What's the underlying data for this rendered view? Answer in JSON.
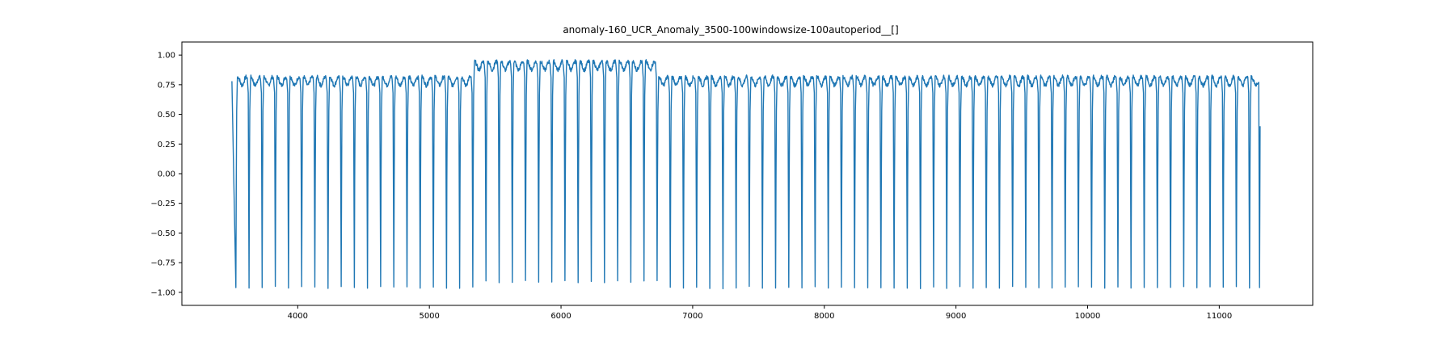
{
  "chart_data": {
    "type": "line",
    "title": "anomaly-160_UCR_Anomaly_3500-100windowsize-100autoperiod__[]",
    "xlabel": "",
    "ylabel": "",
    "xlim": [
      3120,
      11710
    ],
    "ylim": [
      -1.11,
      1.11
    ],
    "x_ticks": [
      4000,
      5000,
      6000,
      7000,
      8000,
      9000,
      10000,
      11000
    ],
    "y_ticks": [
      1.0,
      0.75,
      0.5,
      0.25,
      0.0,
      -0.25,
      -0.5,
      -0.75,
      -1.0
    ],
    "x_tick_labels": [
      "4000",
      "5000",
      "6000",
      "7000",
      "8000",
      "9000",
      "10000",
      "11000"
    ],
    "y_tick_labels": [
      "1.00",
      "0.75",
      "0.50",
      "0.25",
      "0.00",
      "−0.25",
      "−0.50",
      "−0.75",
      "−1.00"
    ],
    "grid": false,
    "line_color": "#1f77b4",
    "series": [
      {
        "x_start": 3500,
        "x_end": 11310,
        "period": 100,
        "start_value": 0.78,
        "end_value": 0.4,
        "normal_peak": 0.83,
        "normal_trough": -0.96,
        "anomaly_range": [
          5300,
          6650
        ],
        "anomaly_peak": 0.96,
        "anomaly_trough": -0.91
      }
    ]
  }
}
